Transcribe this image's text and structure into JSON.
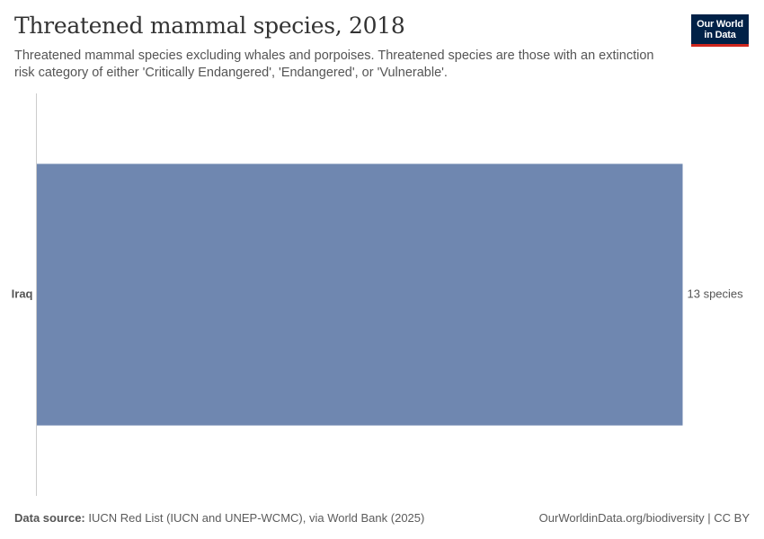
{
  "header": {
    "title": "Threatened mammal species, 2018",
    "subtitle": "Threatened mammal species excluding whales and porpoises. Threatened species are those with an extinction risk category of either 'Critically Endangered', 'Endangered', or 'Vulnerable'."
  },
  "logo": {
    "line1": "Our World",
    "line2": "in Data"
  },
  "footer": {
    "source_label": "Data source:",
    "source_text": "IUCN Red List (IUCN and UNEP-WCMC), via World Bank (2025)",
    "credit": "OurWorldinData.org/biodiversity | CC BY"
  },
  "colors": {
    "bar": "#6f87b0",
    "axis": "#cccccc",
    "logo_bg": "#002147",
    "logo_accent": "#ce261e"
  },
  "chart_data": {
    "type": "bar",
    "orientation": "horizontal",
    "title": "Threatened mammal species, 2018",
    "categories": [
      "Iraq"
    ],
    "values": [
      13
    ],
    "value_labels": [
      "13 species"
    ],
    "unit": "species",
    "xlim": [
      0,
      13
    ],
    "grid": false,
    "legend": "none"
  }
}
